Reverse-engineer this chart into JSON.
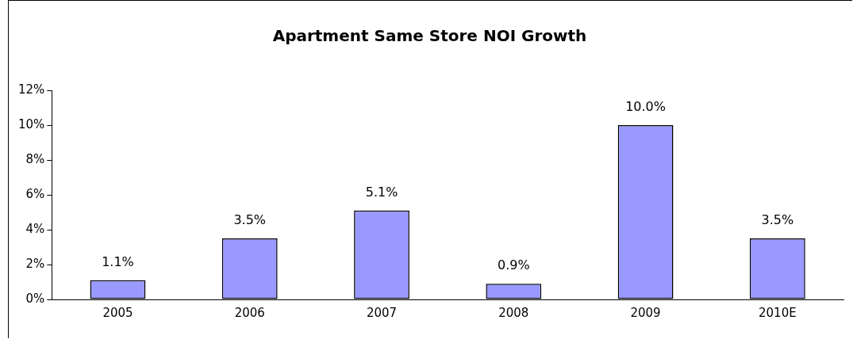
{
  "chart_data": {
    "type": "bar",
    "title": "Apartment Same Store NOI Growth",
    "categories": [
      "2005",
      "2006",
      "2007",
      "2008",
      "2009",
      "2010E"
    ],
    "values": [
      1.1,
      3.5,
      5.1,
      0.9,
      10.0,
      3.5
    ],
    "value_labels": [
      "1.1%",
      "3.5%",
      "5.1%",
      "0.9%",
      "10.0%",
      "3.5%"
    ],
    "color": "#9999ff",
    "ylim": [
      0,
      12
    ],
    "yticks": [
      {
        "value": 0,
        "label": "0%"
      },
      {
        "value": 2,
        "label": "2%"
      },
      {
        "value": 4,
        "label": "4%"
      },
      {
        "value": 6,
        "label": "6%"
      },
      {
        "value": 8,
        "label": "8%"
      },
      {
        "value": 10,
        "label": "10%"
      },
      {
        "value": 12,
        "label": "12%"
      }
    ],
    "grid": false,
    "legend": false
  }
}
